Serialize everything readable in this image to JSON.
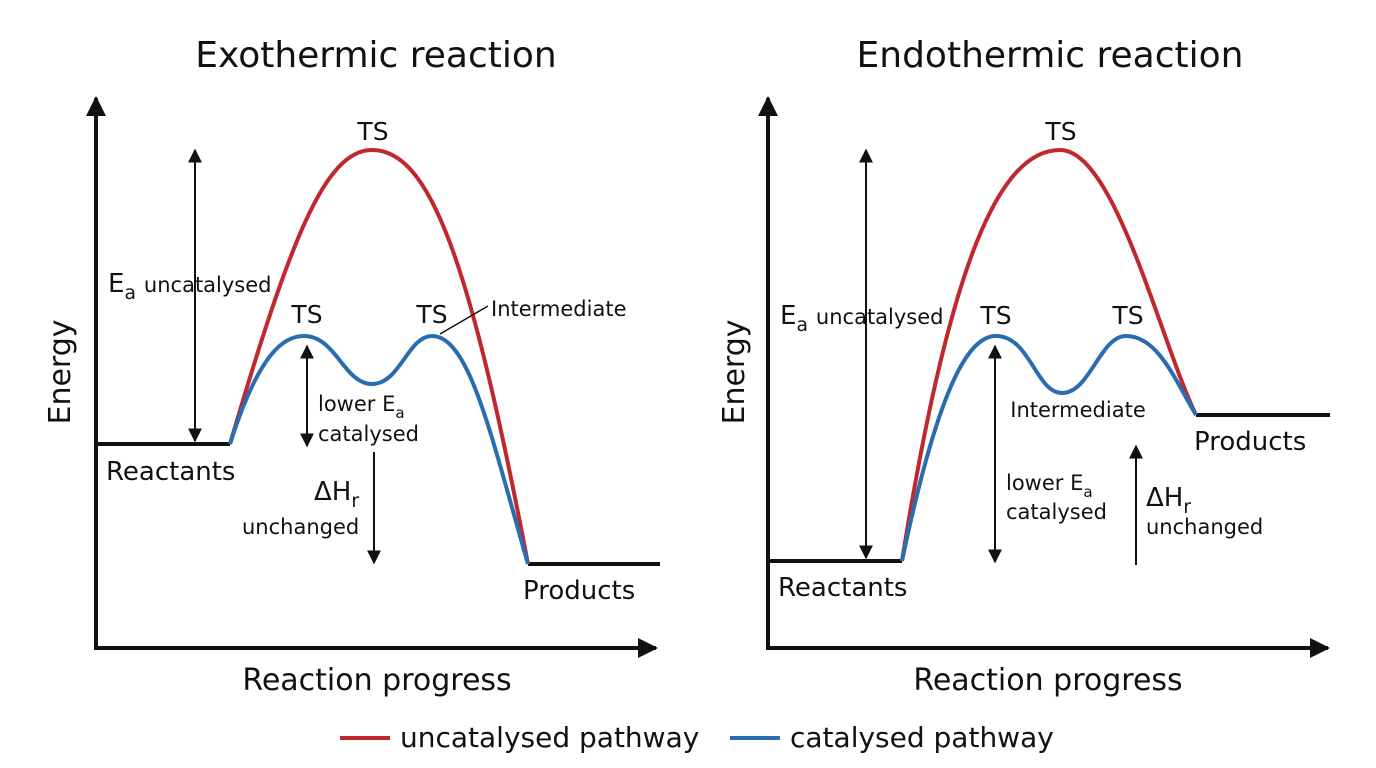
{
  "colors": {
    "uncatalysed": "#c0282e",
    "catalysed": "#2a6cb0",
    "ink": "#111111"
  },
  "legend": {
    "uncatalysed": "uncatalysed pathway",
    "catalysed": "catalysed pathway"
  },
  "panels": [
    {
      "title": "Exothermic reaction",
      "ylabel": "Energy",
      "xlabel": "Reaction progress",
      "reactants": "Reactants",
      "products": "Products",
      "ts_main": "TS",
      "ts_left": "TS",
      "ts_right": "TS",
      "intermediate": "Intermediate",
      "ea_symbol": "E",
      "ea_sub": "a",
      "ea_text": "uncatalysed",
      "lower_text": "lower E",
      "lower_sub": "a",
      "catalysed_text": "catalysed",
      "dh_symbol": "ΔH",
      "dh_sub": "r",
      "unchanged_text": "unchanged"
    },
    {
      "title": "Endothermic reaction",
      "ylabel": "Energy",
      "xlabel": "Reaction progress",
      "reactants": "Reactants",
      "products": "Products",
      "ts_main": "TS",
      "ts_left": "TS",
      "ts_right": "TS",
      "intermediate": "Intermediate",
      "ea_symbol": "E",
      "ea_sub": "a",
      "ea_text": "uncatalysed",
      "lower_text": "lower E",
      "lower_sub": "a",
      "catalysed_text": "catalysed",
      "dh_symbol": "ΔH",
      "dh_sub": "r",
      "unchanged_text": "unchanged"
    }
  ]
}
